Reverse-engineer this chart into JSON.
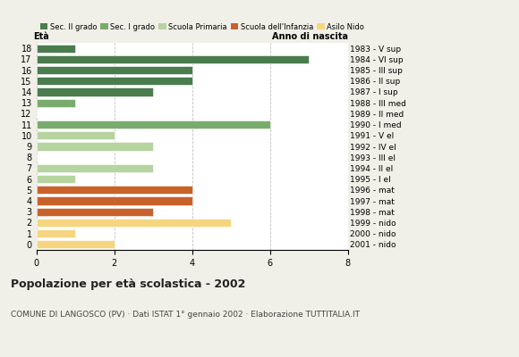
{
  "ages": [
    18,
    17,
    16,
    15,
    14,
    13,
    12,
    11,
    10,
    9,
    8,
    7,
    6,
    5,
    4,
    3,
    2,
    1,
    0
  ],
  "anno_nascita": [
    "1983 - V sup",
    "1984 - VI sup",
    "1985 - III sup",
    "1986 - II sup",
    "1987 - I sup",
    "1988 - III med",
    "1989 - II med",
    "1990 - I med",
    "1991 - V el",
    "1992 - IV el",
    "1993 - III el",
    "1994 - II el",
    "1995 - I el",
    "1996 - mat",
    "1997 - mat",
    "1998 - mat",
    "1999 - nido",
    "2000 - nido",
    "2001 - nido"
  ],
  "values": [
    1,
    7,
    4,
    4,
    3,
    1,
    0,
    6,
    2,
    3,
    0,
    3,
    1,
    4,
    4,
    3,
    5,
    1,
    2
  ],
  "colors": [
    "#4a7c4e",
    "#4a7c4e",
    "#4a7c4e",
    "#4a7c4e",
    "#4a7c4e",
    "#7aab6e",
    "#7aab6e",
    "#7aab6e",
    "#b5d4a0",
    "#b5d4a0",
    "#b5d4a0",
    "#b5d4a0",
    "#b5d4a0",
    "#c9622a",
    "#c9622a",
    "#c9622a",
    "#f5d580",
    "#f5d580",
    "#f5d580"
  ],
  "legend_labels": [
    "Sec. II grado",
    "Sec. I grado",
    "Scuola Primaria",
    "Scuola dell'Infanzia",
    "Asilo Nido"
  ],
  "legend_colors": [
    "#4a7c4e",
    "#7aab6e",
    "#b5d4a0",
    "#c9622a",
    "#f5d580"
  ],
  "title": "Popolazione per età scolastica - 2002",
  "subtitle": "COMUNE DI LANGOSCO (PV) · Dati ISTAT 1° gennaio 2002 · Elaborazione TUTTITALIA.IT",
  "eta_label": "Età",
  "anno_label": "Anno di nascita",
  "xlim": [
    0,
    8
  ],
  "xticks": [
    0,
    2,
    4,
    6,
    8
  ],
  "background_color": "#f0f0e8",
  "bar_background": "#ffffff"
}
